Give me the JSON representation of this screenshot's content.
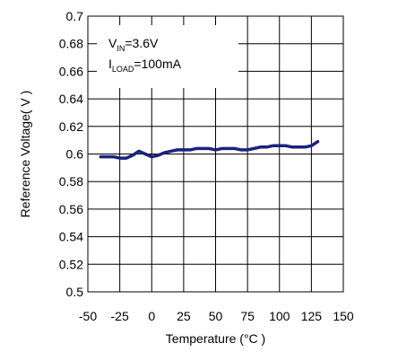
{
  "chart_data": {
    "type": "line",
    "title": "",
    "xlabel": "Temperature (°C )",
    "ylabel": "Reference Voltage( V )",
    "xlim": [
      -50,
      150
    ],
    "ylim": [
      0.5,
      0.7
    ],
    "xticks": [
      -50,
      -25,
      0,
      25,
      50,
      75,
      100,
      125,
      150
    ],
    "yticks": [
      0.5,
      0.52,
      0.54,
      0.56,
      0.58,
      0.6,
      0.62,
      0.64,
      0.66,
      0.68,
      0.7
    ],
    "xtick_labels": [
      "-50",
      "-25",
      "0",
      "25",
      "50",
      "75",
      "100",
      "125",
      "150"
    ],
    "ytick_labels": [
      "0.5",
      "0.52",
      "0.54",
      "0.56",
      "0.58",
      "0.6",
      "0.62",
      "0.64",
      "0.66",
      "0.68",
      "0.7"
    ],
    "grid": true,
    "line_color": "#1a237e",
    "annotation": {
      "line1": {
        "main": "V",
        "sub": "IN",
        "rest": "=3.6V"
      },
      "line2": {
        "main": "I",
        "sub": "LOAD",
        "rest": "=100mA"
      }
    },
    "series": [
      {
        "x": [
          -40,
          -30,
          -25,
          -20,
          -15,
          -10,
          -5,
          0,
          5,
          10,
          15,
          20,
          25,
          30,
          35,
          40,
          45,
          50,
          55,
          60,
          65,
          70,
          75,
          80,
          85,
          90,
          95,
          100,
          105,
          110,
          115,
          120,
          125,
          130
        ],
        "values": [
          0.598,
          0.598,
          0.597,
          0.597,
          0.599,
          0.602,
          0.6,
          0.598,
          0.599,
          0.601,
          0.602,
          0.603,
          0.603,
          0.603,
          0.604,
          0.604,
          0.604,
          0.603,
          0.604,
          0.604,
          0.604,
          0.603,
          0.603,
          0.604,
          0.605,
          0.605,
          0.606,
          0.606,
          0.606,
          0.605,
          0.605,
          0.605,
          0.606,
          0.609
        ]
      }
    ]
  }
}
